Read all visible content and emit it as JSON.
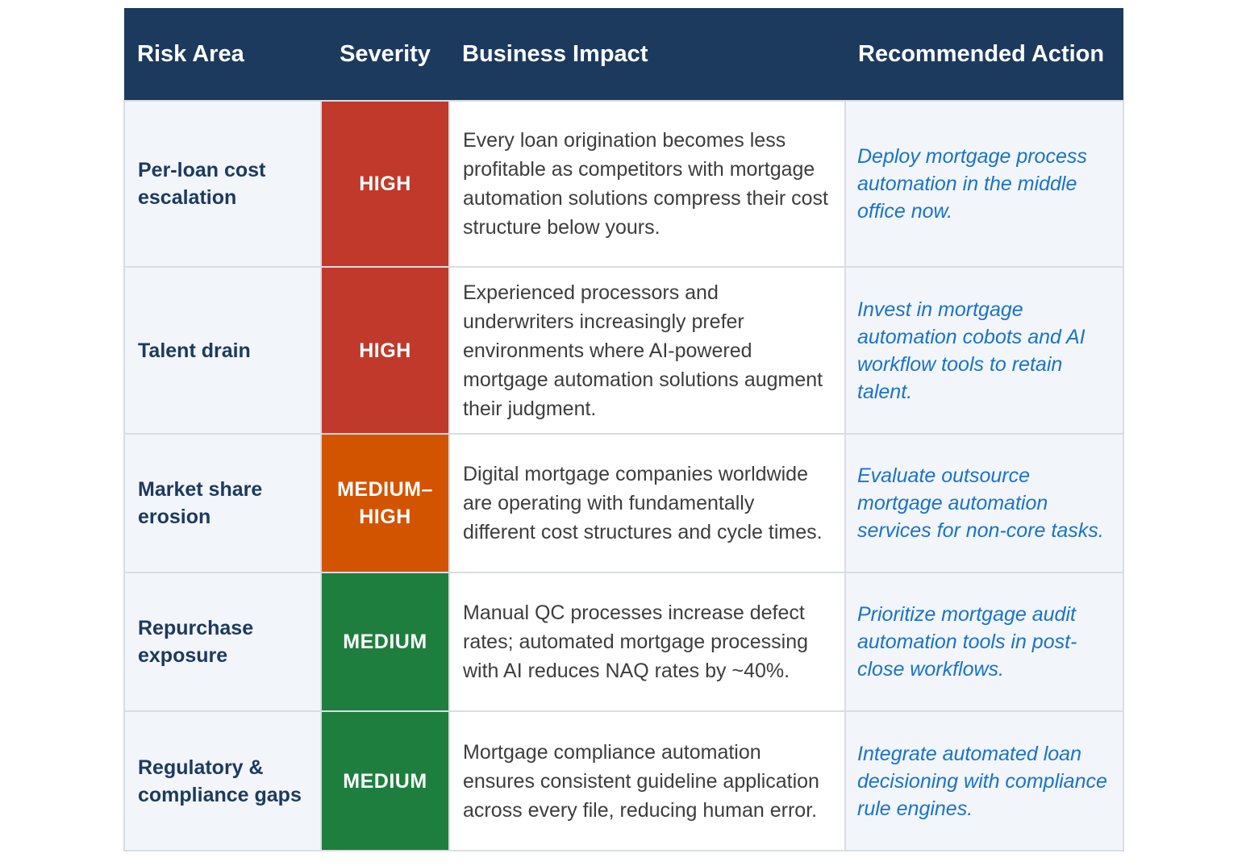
{
  "colors": {
    "header_bg": "#1c3a5e",
    "high": "#c0392b",
    "medium_high": "#d35400",
    "medium": "#1e7e3e",
    "action_text": "#1a73c8"
  },
  "headers": {
    "risk_area": "Risk Area",
    "severity": "Severity",
    "business_impact": "Business Impact",
    "recommended_action": "Recommended Action"
  },
  "rows": [
    {
      "risk_area": "Per-loan cost escalation",
      "severity": "HIGH",
      "severity_color": "#c0392b",
      "impact": "Every loan origination becomes less profitable as competitors with mortgage automation solutions compress their cost structure below yours.",
      "action": "Deploy mortgage process automation in the middle office now."
    },
    {
      "risk_area": "Talent drain",
      "severity": "HIGH",
      "severity_color": "#c0392b",
      "impact": "Experienced processors and underwriters increasingly prefer environments where AI-powered mortgage automation solutions augment their judgment.",
      "action": "Invest in mortgage automation cobots and AI workflow tools to retain talent."
    },
    {
      "risk_area": "Market share erosion",
      "severity": "MEDIUM–HIGH",
      "severity_color": "#d35400",
      "impact": "Digital mortgage companies worldwide are operating with fundamentally different cost structures and cycle times.",
      "action": "Evaluate outsource mortgage automation services for non-core tasks."
    },
    {
      "risk_area": "Repurchase exposure",
      "severity": "MEDIUM",
      "severity_color": "#1e7e3e",
      "impact": "Manual QC processes increase defect rates; automated mortgage processing with AI reduces NAQ rates by ~40%.",
      "action": "Prioritize mortgage audit automation tools in post-close workflows."
    },
    {
      "risk_area": "Regulatory & compliance gaps",
      "severity": "MEDIUM",
      "severity_color": "#1e7e3e",
      "impact": "Mortgage compliance automation ensures consistent guideline application across every file, reducing human error.",
      "action": "Integrate automated loan decisioning with compliance rule engines."
    }
  ]
}
